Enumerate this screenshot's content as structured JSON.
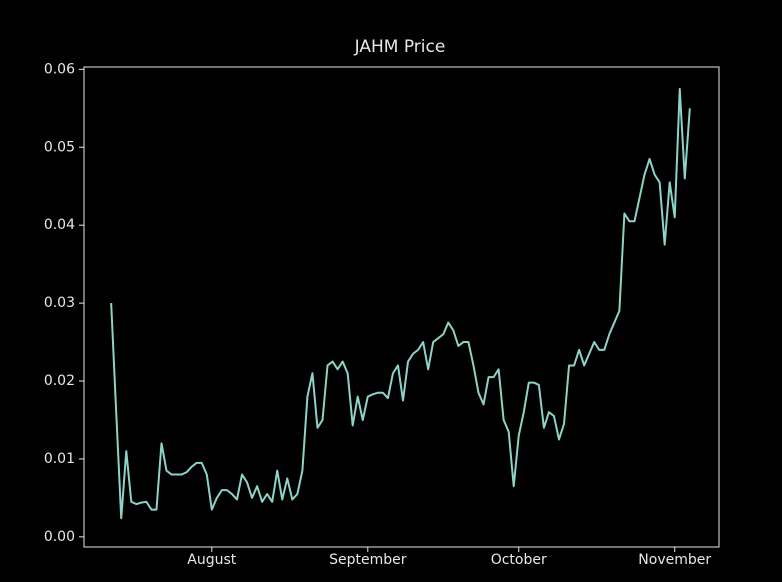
{
  "chart_data": {
    "type": "line",
    "title": "JAHM Price",
    "x": [
      193,
      194,
      195,
      196,
      197,
      198,
      199,
      200,
      201,
      202,
      203,
      204,
      205,
      206,
      207,
      208,
      209,
      210,
      211,
      212,
      213,
      214,
      215,
      216,
      217,
      218,
      219,
      220,
      221,
      222,
      223,
      224,
      225,
      226,
      227,
      228,
      229,
      230,
      231,
      232,
      233,
      234,
      235,
      236,
      237,
      238,
      239,
      240,
      241,
      242,
      243,
      244,
      245,
      246,
      247,
      248,
      249,
      250,
      251,
      252,
      253,
      254,
      255,
      256,
      257,
      258,
      259,
      260,
      261,
      262,
      263,
      264,
      265,
      266,
      267,
      268,
      269,
      270,
      271,
      272,
      273,
      274,
      275,
      276,
      277,
      278,
      279,
      280,
      281,
      282,
      283,
      284,
      285,
      286,
      287,
      288,
      289,
      290,
      291,
      292,
      293,
      294,
      295,
      296,
      297,
      298,
      299,
      300,
      301,
      302,
      303,
      304,
      305,
      306,
      307,
      308
    ],
    "values": [
      0.03,
      0.016,
      0.0024,
      0.011,
      0.0045,
      0.0042,
      0.0044,
      0.0045,
      0.0035,
      0.0035,
      0.012,
      0.0085,
      0.008,
      0.008,
      0.008,
      0.0083,
      0.009,
      0.0095,
      0.0095,
      0.008,
      0.0035,
      0.005,
      0.006,
      0.006,
      0.0055,
      0.0048,
      0.008,
      0.007,
      0.005,
      0.0065,
      0.0045,
      0.0055,
      0.0045,
      0.0085,
      0.0048,
      0.0075,
      0.0048,
      0.0055,
      0.0085,
      0.018,
      0.021,
      0.014,
      0.015,
      0.022,
      0.0225,
      0.0215,
      0.0225,
      0.021,
      0.0143,
      0.018,
      0.015,
      0.018,
      0.0183,
      0.0185,
      0.0185,
      0.0178,
      0.021,
      0.022,
      0.0175,
      0.0225,
      0.0235,
      0.024,
      0.025,
      0.0215,
      0.025,
      0.0255,
      0.026,
      0.0275,
      0.0265,
      0.0245,
      0.025,
      0.025,
      0.022,
      0.0185,
      0.017,
      0.0205,
      0.0205,
      0.0215,
      0.015,
      0.0135,
      0.0065,
      0.013,
      0.016,
      0.0198,
      0.0198,
      0.0195,
      0.014,
      0.016,
      0.0155,
      0.0125,
      0.0145,
      0.022,
      0.022,
      0.024,
      0.022,
      0.0235,
      0.025,
      0.024,
      0.024,
      0.026,
      0.0275,
      0.029,
      0.0415,
      0.0405,
      0.0405,
      0.0435,
      0.0465,
      0.0485,
      0.0465,
      0.0455,
      0.0375,
      0.0455,
      0.041,
      0.0575,
      0.046,
      0.055
    ],
    "color": "#8dd3c7",
    "xlim": [
      187.6,
      313.8
    ],
    "xticks": [
      {
        "value": 213,
        "label": "August"
      },
      {
        "value": 244,
        "label": "September"
      },
      {
        "value": 274,
        "label": "October"
      },
      {
        "value": 305,
        "label": "November"
      }
    ],
    "ylim": [
      -0.0013,
      0.0603
    ],
    "yticks": [
      {
        "value": 0,
        "label": "0.00"
      },
      0.01,
      0.02,
      0.03,
      0.04,
      0.05,
      0.06
    ]
  }
}
